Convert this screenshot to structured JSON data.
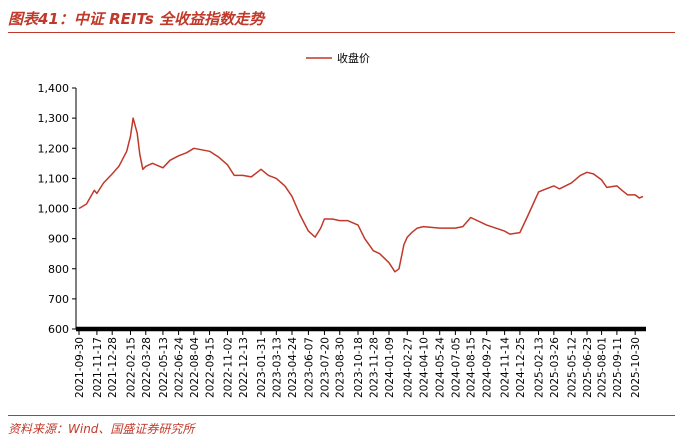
{
  "title": "图表41：中证 REITs 全收益指数走势",
  "source": "资料来源：Wind、国盛证券研究所",
  "colors": {
    "accent": "#c0392b",
    "axis": "#000000",
    "text": "#000000"
  },
  "chart_data": {
    "type": "line",
    "title": "图表41：中证 REITs 全收益指数走势",
    "xlabel": "",
    "ylabel": "",
    "ylim": [
      600,
      1400
    ],
    "y_ticks": [
      600,
      700,
      800,
      900,
      1000,
      1100,
      1200,
      1300,
      1400
    ],
    "y_tick_labels": [
      "600",
      "700",
      "800",
      "900",
      "1,000",
      "1,100",
      "1,200",
      "1,300",
      "1,400"
    ],
    "x_tick_labels": [
      "2021-09-30",
      "2021-11-17",
      "2021-12-28",
      "2022-02-15",
      "2022-03-28",
      "2022-05-13",
      "2022-06-24",
      "2022-08-04",
      "2022-09-15",
      "2022-11-02",
      "2022-12-13",
      "2023-01-31",
      "2023-03-13",
      "2023-04-24",
      "2023-06-07",
      "2023-07-20",
      "2023-08-30",
      "2023-10-18",
      "2023-11-28",
      "2024-01-09",
      "2024-02-27",
      "2024-04-10",
      "2024-05-24",
      "2024-07-05",
      "2024-08-15",
      "2024-09-27",
      "2024-11-14",
      "2024-12-25",
      "2025-02-13",
      "2025-03-26",
      "2025-05-12",
      "2025-06-23",
      "2025-08-01",
      "2025-09-11",
      "2025-10-30"
    ],
    "legend": "top-center",
    "grid": false,
    "series": [
      {
        "name": "收盘价",
        "color": "#c0392b",
        "x": [
          "2021-09-30",
          "2021-10-20",
          "2021-11-10",
          "2021-11-17",
          "2021-12-05",
          "2021-12-28",
          "2022-01-15",
          "2022-02-05",
          "2022-02-15",
          "2022-02-22",
          "2022-03-05",
          "2022-03-12",
          "2022-03-20",
          "2022-03-28",
          "2022-04-15",
          "2022-05-13",
          "2022-06-01",
          "2022-06-24",
          "2022-07-15",
          "2022-08-04",
          "2022-08-25",
          "2022-09-15",
          "2022-10-10",
          "2022-11-02",
          "2022-11-20",
          "2022-12-13",
          "2023-01-05",
          "2023-01-31",
          "2023-02-20",
          "2023-03-13",
          "2023-04-05",
          "2023-04-24",
          "2023-05-15",
          "2023-06-07",
          "2023-06-25",
          "2023-07-10",
          "2023-07-20",
          "2023-08-10",
          "2023-08-30",
          "2023-09-20",
          "2023-10-18",
          "2023-11-05",
          "2023-11-28",
          "2023-12-15",
          "2024-01-09",
          "2024-01-25",
          "2024-02-05",
          "2024-02-18",
          "2024-02-27",
          "2024-03-10",
          "2024-03-25",
          "2024-04-10",
          "2024-05-24",
          "2024-07-05",
          "2024-07-25",
          "2024-08-15",
          "2024-09-27",
          "2024-11-14",
          "2024-11-28",
          "2024-12-25",
          "2025-01-15",
          "2025-02-13",
          "2025-03-05",
          "2025-03-26",
          "2025-04-10",
          "2025-05-12",
          "2025-06-05",
          "2025-06-23",
          "2025-07-10",
          "2025-08-01",
          "2025-08-15",
          "2025-09-11",
          "2025-09-25",
          "2025-10-10",
          "2025-10-30",
          "2025-11-10",
          "2025-11-20"
        ],
        "values": [
          1000,
          1015,
          1060,
          1050,
          1085,
          1115,
          1140,
          1190,
          1240,
          1300,
          1250,
          1180,
          1130,
          1140,
          1150,
          1135,
          1160,
          1175,
          1185,
          1200,
          1195,
          1190,
          1170,
          1145,
          1110,
          1110,
          1105,
          1130,
          1110,
          1100,
          1075,
          1040,
          980,
          925,
          905,
          935,
          965,
          965,
          960,
          960,
          945,
          900,
          860,
          850,
          820,
          790,
          800,
          880,
          905,
          920,
          935,
          940,
          935,
          935,
          940,
          970,
          945,
          925,
          915,
          920,
          975,
          1055,
          1065,
          1075,
          1065,
          1085,
          1110,
          1120,
          1115,
          1095,
          1070,
          1075,
          1060,
          1045,
          1045,
          1035,
          1040
        ]
      }
    ]
  }
}
